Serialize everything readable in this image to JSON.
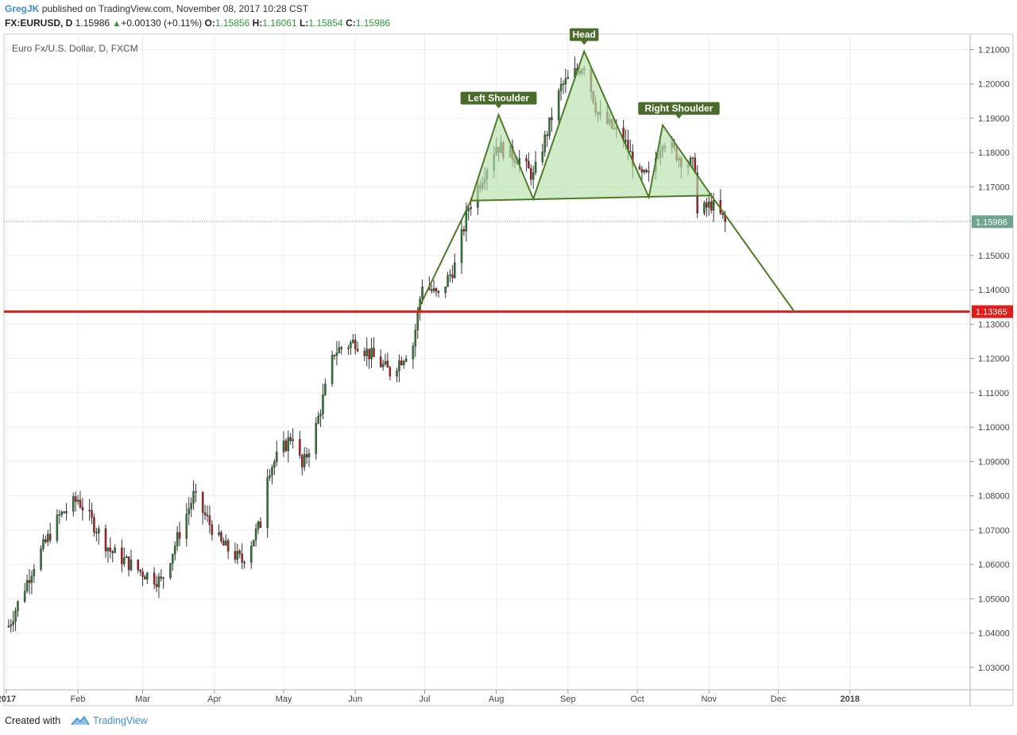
{
  "header": {
    "author": "GregJK",
    "published_text": "published on TradingView.com, November 08, 2017 10:28 CST",
    "symbol": "FX:EURUSD, D",
    "last": "1.15986",
    "change": "+0.00130 (+0.11%)",
    "o_label": "O:",
    "o_value": "1.15856",
    "h_label": "H:",
    "h_value": "1.16061",
    "l_label": "L:",
    "l_value": "1.15854",
    "c_label": "C:",
    "c_value": "1.15986"
  },
  "chart_title": "Euro Fx/U.S. Dollar, D, FXCM",
  "footer": {
    "created_with": "Created with",
    "brand": "TradingView"
  },
  "colors": {
    "up": "#2e7d32",
    "down": "#b71c1c",
    "pattern": "#4f7a2a",
    "pattern_fill": "#b7e0ab",
    "support": "#e31b1b",
    "price_line": "#6da58e"
  },
  "chart_data": {
    "type": "candlestick",
    "title": "Euro Fx/U.S. Dollar, D, FXCM",
    "y_ticks": [
      "1.21000",
      "1.20000",
      "1.19000",
      "1.18000",
      "1.17000",
      "1.16000",
      "1.15000",
      "1.14000",
      "1.13000",
      "1.12000",
      "1.11000",
      "1.10000",
      "1.09000",
      "1.08000",
      "1.07000",
      "1.06000",
      "1.05000",
      "1.04000",
      "1.03000"
    ],
    "ylim": [
      1.0235,
      1.2145
    ],
    "x_ticks": [
      {
        "label": "2017",
        "date": "2017-01-01",
        "bold": true
      },
      {
        "label": "Feb",
        "date": "2017-02-01"
      },
      {
        "label": "Mar",
        "date": "2017-03-01"
      },
      {
        "label": "Apr",
        "date": "2017-04-01"
      },
      {
        "label": "May",
        "date": "2017-05-01"
      },
      {
        "label": "Jun",
        "date": "2017-06-01"
      },
      {
        "label": "Jul",
        "date": "2017-07-01"
      },
      {
        "label": "Aug",
        "date": "2017-08-01"
      },
      {
        "label": "Sep",
        "date": "2017-09-01"
      },
      {
        "label": "Oct",
        "date": "2017-10-01"
      },
      {
        "label": "Nov",
        "date": "2017-11-01"
      },
      {
        "label": "Dec",
        "date": "2017-12-01"
      },
      {
        "label": "2018",
        "date": "2018-01-01",
        "bold": true
      }
    ],
    "xlim": [
      "2016-12-31",
      "2018-02-22"
    ],
    "price_trend": [
      {
        "date": "2017-01-02",
        "price": 1.042
      },
      {
        "date": "2017-01-13",
        "price": 1.06
      },
      {
        "date": "2017-01-24",
        "price": 1.074
      },
      {
        "date": "2017-02-01",
        "price": 1.079
      },
      {
        "date": "2017-02-15",
        "price": 1.064
      },
      {
        "date": "2017-02-28",
        "price": 1.058
      },
      {
        "date": "2017-03-09",
        "price": 1.055
      },
      {
        "date": "2017-03-23",
        "price": 1.08
      },
      {
        "date": "2017-04-04",
        "price": 1.066
      },
      {
        "date": "2017-04-13",
        "price": 1.061
      },
      {
        "date": "2017-04-21",
        "price": 1.072
      },
      {
        "date": "2017-04-24",
        "price": 1.087
      },
      {
        "date": "2017-05-05",
        "price": 1.098
      },
      {
        "date": "2017-05-09",
        "price": 1.088
      },
      {
        "date": "2017-05-15",
        "price": 1.1
      },
      {
        "date": "2017-05-23",
        "price": 1.122
      },
      {
        "date": "2017-06-01",
        "price": 1.125
      },
      {
        "date": "2017-06-16",
        "price": 1.116
      },
      {
        "date": "2017-06-26",
        "price": 1.124
      },
      {
        "date": "2017-06-30",
        "price": 1.142
      },
      {
        "date": "2017-07-07",
        "price": 1.138
      },
      {
        "date": "2017-07-14",
        "price": 1.147
      },
      {
        "date": "2017-07-20",
        "price": 1.164
      },
      {
        "date": "2017-08-01",
        "price": 1.182
      },
      {
        "date": "2017-08-11",
        "price": 1.178
      },
      {
        "date": "2017-08-17",
        "price": 1.173
      },
      {
        "date": "2017-08-29",
        "price": 1.199
      },
      {
        "date": "2017-09-08",
        "price": 1.206
      },
      {
        "date": "2017-09-14",
        "price": 1.191
      },
      {
        "date": "2017-09-25",
        "price": 1.184
      },
      {
        "date": "2017-10-02",
        "price": 1.173
      },
      {
        "date": "2017-10-06",
        "price": 1.173
      },
      {
        "date": "2017-10-12",
        "price": 1.184
      },
      {
        "date": "2017-10-20",
        "price": 1.178
      },
      {
        "date": "2017-10-26",
        "price": 1.176
      },
      {
        "date": "2017-10-27",
        "price": 1.162
      },
      {
        "date": "2017-11-02",
        "price": 1.165
      },
      {
        "date": "2017-11-08",
        "price": 1.1599
      }
    ],
    "last_price": 1.15986,
    "last_price_label": "1.15986",
    "support_level": 1.13365,
    "support_label": "1.13365",
    "pattern": {
      "name": "Head and Shoulders",
      "points": [
        {
          "date": "2017-06-28",
          "price": 1.134
        },
        {
          "date": "2017-07-21",
          "price": 1.166
        },
        {
          "date": "2017-08-02",
          "price": 1.191
        },
        {
          "date": "2017-08-17",
          "price": 1.1665
        },
        {
          "date": "2017-09-08",
          "price": 1.2095
        },
        {
          "date": "2017-10-06",
          "price": 1.167
        },
        {
          "date": "2017-10-12",
          "price": 1.188
        },
        {
          "date": "2017-11-02",
          "price": 1.1675
        },
        {
          "date": "2017-12-08",
          "price": 1.1336
        }
      ],
      "neckline": [
        {
          "date": "2017-07-21",
          "price": 1.166
        },
        {
          "date": "2017-11-02",
          "price": 1.1675
        }
      ],
      "labels": [
        {
          "text": "Left Shoulder",
          "date": "2017-08-02",
          "price": 1.191
        },
        {
          "text": "Head",
          "date": "2017-09-08",
          "price": 1.2095
        },
        {
          "text": "Right Shoulder",
          "date": "2017-10-19",
          "price": 1.188
        }
      ]
    }
  }
}
